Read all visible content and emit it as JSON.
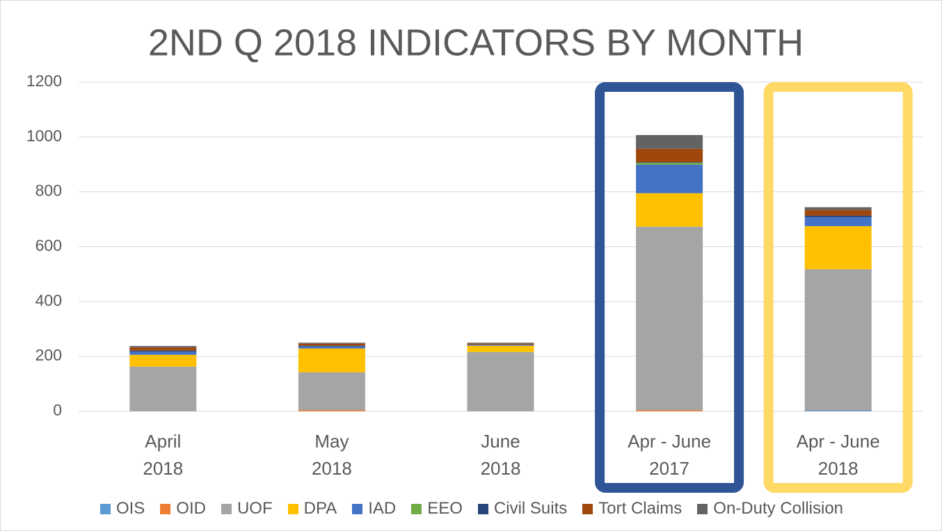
{
  "chart_data": {
    "type": "stacked_bar",
    "title": "2ND Q 2018 INDICATORS BY MONTH",
    "categories": [
      "April\n2018",
      "May\n2018",
      "June\n2018",
      "Apr - June\n2017",
      "Apr - June\n2018"
    ],
    "series": [
      {
        "name": "OIS",
        "color": "#5b9bd5",
        "values": [
          1,
          0,
          0,
          0,
          4
        ]
      },
      {
        "name": "OID",
        "color": "#ed7d31",
        "values": [
          1,
          4,
          0,
          4,
          1
        ]
      },
      {
        "name": "UOF",
        "color": "#a5a5a5",
        "values": [
          161,
          138,
          216,
          669,
          513
        ]
      },
      {
        "name": "DPA",
        "color": "#ffc000",
        "values": [
          43,
          87,
          23,
          122,
          157
        ]
      },
      {
        "name": "IAD",
        "color": "#4472c4",
        "values": [
          12,
          8,
          3,
          104,
          33
        ]
      },
      {
        "name": "EEO",
        "color": "#70ad47",
        "values": [
          0,
          0,
          0,
          7,
          0
        ]
      },
      {
        "name": "Civil Suits",
        "color": "#264478",
        "values": [
          3,
          2,
          1,
          2,
          5
        ]
      },
      {
        "name": "Tort Claims",
        "color": "#9e480e",
        "values": [
          12,
          8,
          4,
          49,
          21
        ]
      },
      {
        "name": "On-Duty Collision",
        "color": "#636363",
        "values": [
          5,
          3,
          3,
          50,
          10
        ]
      }
    ],
    "ylim": [
      0,
      1200
    ],
    "yticks": [
      0,
      200,
      400,
      600,
      800,
      1000,
      1200
    ],
    "grid": true,
    "highlights": [
      {
        "category": 3,
        "color": "#2f5597"
      },
      {
        "category": 4,
        "color": "#ffd966"
      }
    ],
    "legend": "bottom"
  }
}
